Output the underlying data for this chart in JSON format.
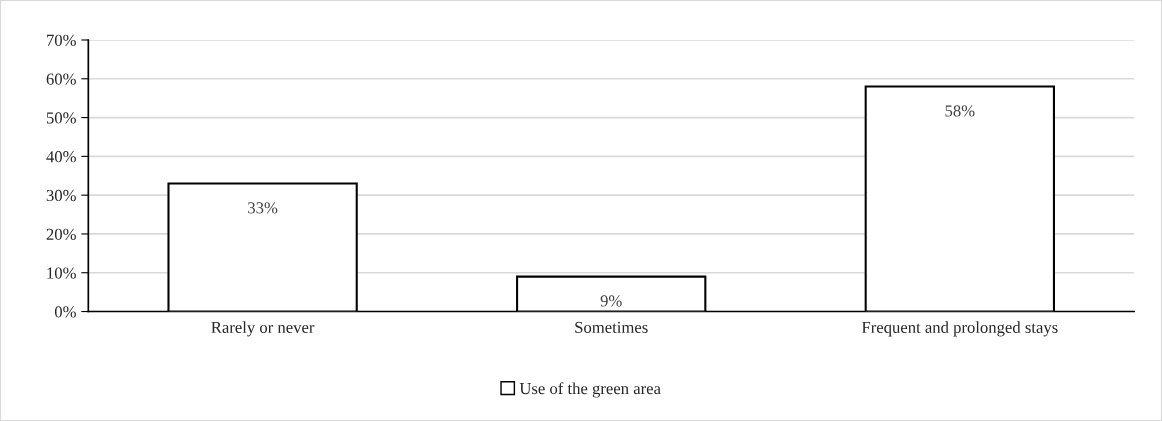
{
  "chart_data": {
    "type": "bar",
    "categories": [
      "Rarely or never",
      "Sometimes",
      "Frequent and prolonged stays"
    ],
    "series": [
      {
        "name": "Use of the green area",
        "color": "#ffffff",
        "values": [
          33,
          9,
          58
        ],
        "value_labels": [
          "33%",
          "9%",
          "58%"
        ]
      }
    ],
    "ylim": [
      0,
      70
    ],
    "yticks": [
      {
        "value": 0,
        "label": "0%"
      },
      {
        "value": 10,
        "label": "10%"
      },
      {
        "value": 20,
        "label": "20%"
      },
      {
        "value": 30,
        "label": "30%"
      },
      {
        "value": 40,
        "label": "40%"
      },
      {
        "value": 50,
        "label": "50%"
      },
      {
        "value": 60,
        "label": "60%"
      },
      {
        "value": 70,
        "label": "70%"
      }
    ],
    "grid": "y",
    "legend": "bottom"
  }
}
